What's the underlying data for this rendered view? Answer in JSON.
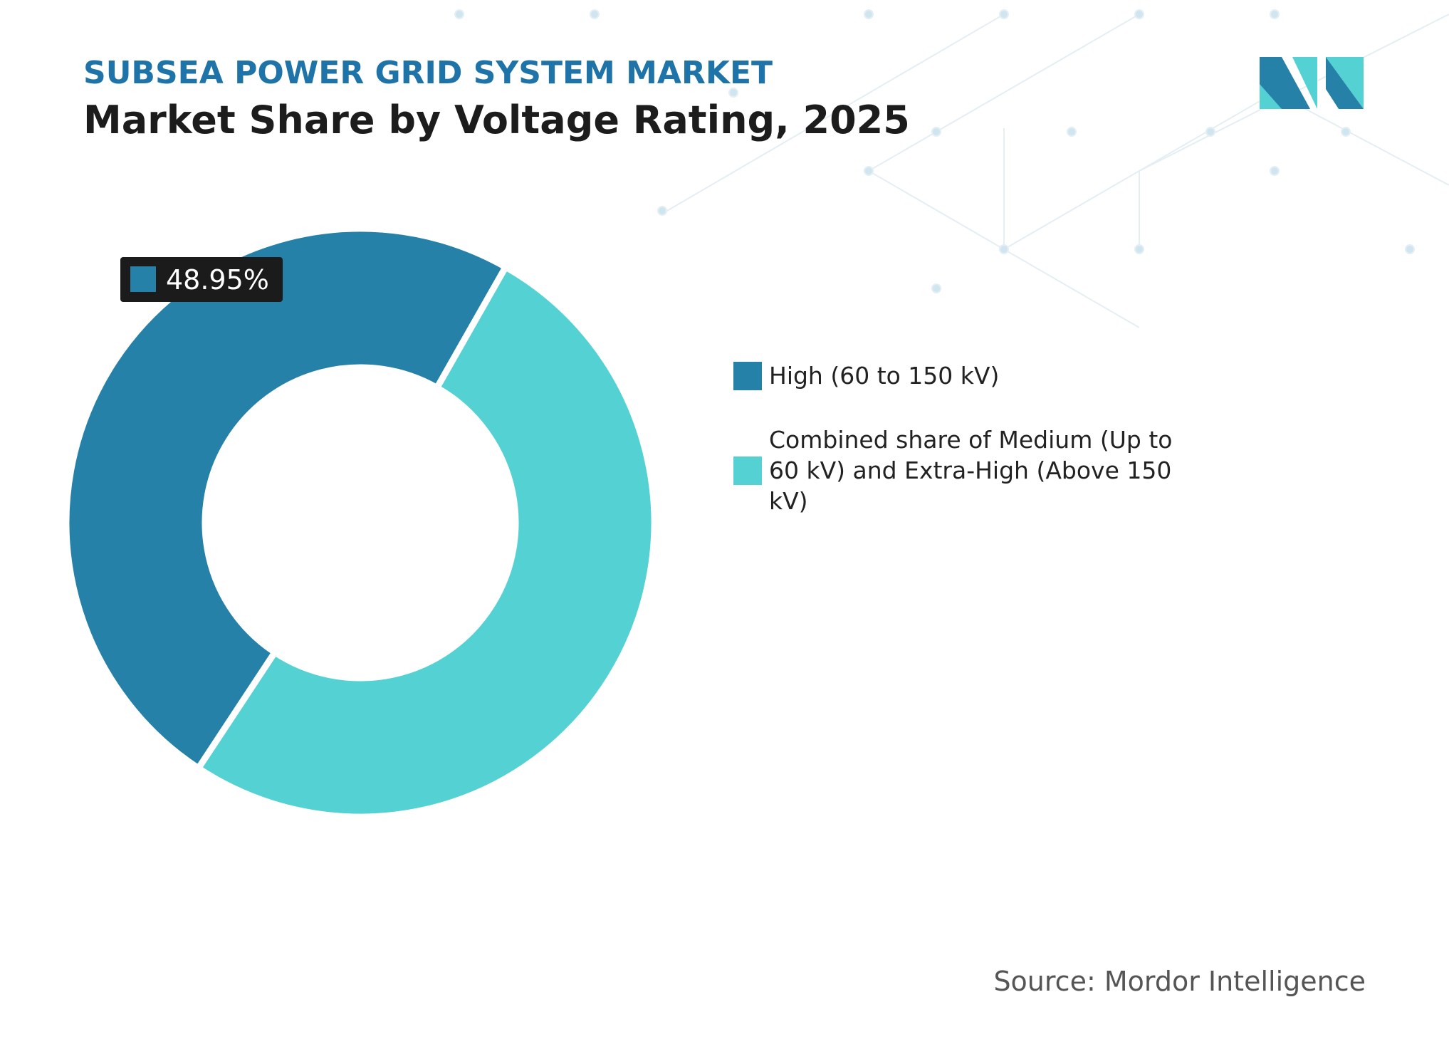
{
  "chart_data": {
    "type": "donut",
    "title": "SUBSEA POWER GRID SYSTEM MARKET",
    "subtitle": "Market Share by Voltage Rating, 2025",
    "categories": [
      "High (60 to 150 kV)",
      "Combined share of Medium (Up to 60 kV) and Extra-High (Above 150 kV)"
    ],
    "values": [
      48.95,
      51.05
    ],
    "value_labels": [
      "48.95%",
      null
    ],
    "colors": [
      "#2681a8",
      "#53d1d3"
    ],
    "source": "Source: Mordor Intelligence"
  }
}
